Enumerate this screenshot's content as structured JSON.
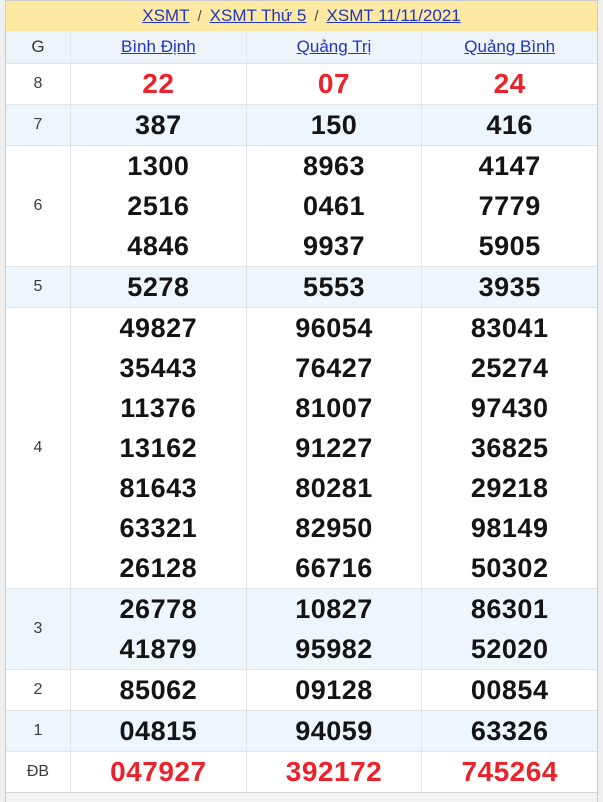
{
  "breadcrumb": {
    "separator": "/",
    "items": [
      "XSMT",
      "XSMT Thứ 5",
      "XSMT 11/11/2021"
    ]
  },
  "table": {
    "corner_label": "G",
    "provinces": [
      "Bình Định",
      "Quảng Trị",
      "Quảng Bình"
    ],
    "rows": [
      {
        "label": "8",
        "striped": false,
        "red": true,
        "values": [
          [
            "22"
          ],
          [
            "07"
          ],
          [
            "24"
          ]
        ]
      },
      {
        "label": "7",
        "striped": true,
        "red": false,
        "values": [
          [
            "387"
          ],
          [
            "150"
          ],
          [
            "416"
          ]
        ]
      },
      {
        "label": "6",
        "striped": false,
        "red": false,
        "values": [
          [
            "1300",
            "2516",
            "4846"
          ],
          [
            "8963",
            "0461",
            "9937"
          ],
          [
            "4147",
            "7779",
            "5905"
          ]
        ]
      },
      {
        "label": "5",
        "striped": true,
        "red": false,
        "values": [
          [
            "5278"
          ],
          [
            "5553"
          ],
          [
            "3935"
          ]
        ]
      },
      {
        "label": "4",
        "striped": false,
        "red": false,
        "values": [
          [
            "49827",
            "35443",
            "11376",
            "13162",
            "81643",
            "63321",
            "26128"
          ],
          [
            "96054",
            "76427",
            "81007",
            "91227",
            "80281",
            "82950",
            "66716"
          ],
          [
            "83041",
            "25274",
            "97430",
            "36825",
            "29218",
            "98149",
            "50302"
          ]
        ]
      },
      {
        "label": "3",
        "striped": true,
        "red": false,
        "values": [
          [
            "26778",
            "41879"
          ],
          [
            "10827",
            "95982"
          ],
          [
            "86301",
            "52020"
          ]
        ]
      },
      {
        "label": "2",
        "striped": false,
        "red": false,
        "values": [
          [
            "85062"
          ],
          [
            "09128"
          ],
          [
            "00854"
          ]
        ]
      },
      {
        "label": "1",
        "striped": true,
        "red": false,
        "values": [
          [
            "04815"
          ],
          [
            "94059"
          ],
          [
            "63326"
          ]
        ]
      },
      {
        "label": "ĐB",
        "striped": false,
        "red": true,
        "values": [
          [
            "047927"
          ],
          [
            "392172"
          ],
          [
            "745264"
          ]
        ]
      }
    ]
  },
  "colors": {
    "header_yellow": "#fde9a2",
    "stripe_blue": "#edf5fd",
    "link_blue": "#2135c1",
    "accent_red": "#e8232b"
  }
}
